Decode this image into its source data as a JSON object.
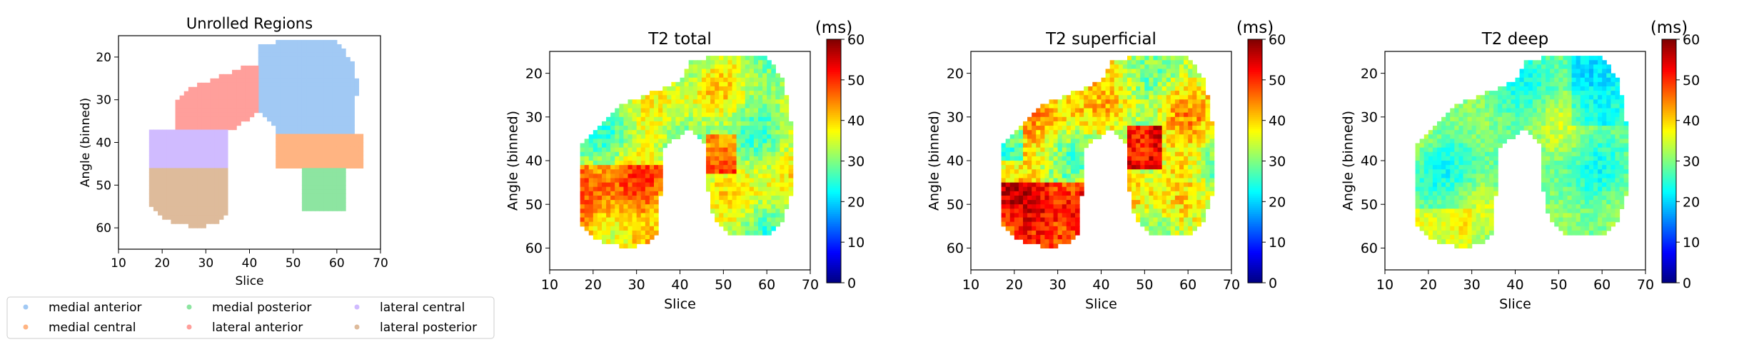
{
  "colors": {
    "medial_anterior": "#a1c9f4",
    "medial_central": "#ffb482",
    "medial_posterior": "#8de5a1",
    "lateral_anterior": "#ff9f9b",
    "lateral_central": "#d0bbff",
    "lateral_posterior": "#debb9b"
  },
  "chart_data": [
    {
      "type": "heatmap",
      "title": "Unrolled Regions",
      "xlabel": "Slice",
      "ylabel": "Angle (binned)",
      "xlim": [
        10,
        70
      ],
      "ylim": [
        65,
        15
      ],
      "xticks": [
        10,
        20,
        30,
        40,
        50,
        60,
        70
      ],
      "yticks": [
        20,
        30,
        40,
        50,
        60
      ],
      "categorical": true,
      "legend": {
        "placement": "bottom-left",
        "entries": [
          "medial anterior",
          "medial central",
          "medial posterior",
          "lateral anterior",
          "lateral central",
          "lateral posterior"
        ]
      },
      "regions": [
        {
          "name": "medial anterior",
          "slice_range": [
            42,
            66
          ],
          "angle_range": [
            16,
            38
          ]
        },
        {
          "name": "medial central",
          "slice_range": [
            46,
            66
          ],
          "angle_range": [
            38,
            46
          ]
        },
        {
          "name": "medial posterior",
          "slice_range": [
            52,
            62
          ],
          "angle_range": [
            46,
            56
          ]
        },
        {
          "name": "lateral anterior",
          "slice_range": [
            23,
            42
          ],
          "angle_range": [
            22,
            37
          ]
        },
        {
          "name": "lateral central",
          "slice_range": [
            17,
            35
          ],
          "angle_range": [
            37,
            46
          ]
        },
        {
          "name": "lateral posterior",
          "slice_range": [
            17,
            35
          ],
          "angle_range": [
            46,
            60
          ]
        }
      ]
    },
    {
      "type": "heatmap",
      "title": "T2 total",
      "xlabel": "Slice",
      "ylabel": "Angle (binned)",
      "xlim": [
        10,
        70
      ],
      "ylim": [
        65,
        15
      ],
      "xticks": [
        10,
        20,
        30,
        40,
        50,
        60,
        70
      ],
      "yticks": [
        20,
        30,
        40,
        50,
        60
      ],
      "colorbar": {
        "label": "(ms)",
        "range": [
          0,
          60
        ],
        "ticks": [
          0,
          10,
          20,
          30,
          40,
          50,
          60
        ],
        "colormap": "jet"
      },
      "value_range_estimate": [
        20,
        55
      ]
    },
    {
      "type": "heatmap",
      "title": "T2 superficial",
      "xlabel": "Slice",
      "ylabel": "Angle (binned)",
      "xlim": [
        10,
        70
      ],
      "ylim": [
        65,
        15
      ],
      "xticks": [
        10,
        20,
        30,
        40,
        50,
        60,
        70
      ],
      "yticks": [
        20,
        30,
        40,
        50,
        60
      ],
      "colorbar": {
        "label": "(ms)",
        "range": [
          0,
          60
        ],
        "ticks": [
          0,
          10,
          20,
          30,
          40,
          50,
          60
        ],
        "colormap": "jet"
      },
      "value_range_estimate": [
        18,
        60
      ]
    },
    {
      "type": "heatmap",
      "title": "T2 deep",
      "xlabel": "Slice",
      "ylabel": "Angle (binned)",
      "xlim": [
        10,
        70
      ],
      "ylim": [
        65,
        15
      ],
      "xticks": [
        10,
        20,
        30,
        40,
        50,
        60,
        70
      ],
      "yticks": [
        20,
        30,
        40,
        50,
        60
      ],
      "colorbar": {
        "label": "(ms)",
        "range": [
          0,
          60
        ],
        "ticks": [
          0,
          10,
          20,
          30,
          40,
          50,
          60
        ],
        "colormap": "jet"
      },
      "value_range_estimate": [
        18,
        45
      ]
    }
  ]
}
